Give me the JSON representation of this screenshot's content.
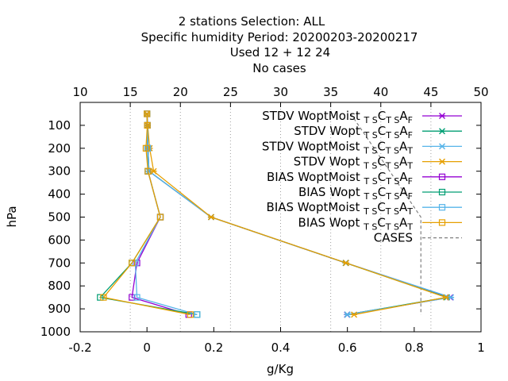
{
  "chart_data": {
    "type": "line",
    "title_lines": [
      "2 stations Selection: ALL",
      "Specific humidity  Period: 20200203-20200217",
      "Used  12 + 12 24",
      "No cases"
    ],
    "xlabel": "g/Kg",
    "ylabel": "hPa",
    "xlim": [
      -0.2,
      1
    ],
    "ylim": [
      1000,
      0
    ],
    "x2lim": [
      10,
      50
    ],
    "xticks": [
      "-0.2",
      "0",
      "0.2",
      "0.4",
      "0.6",
      "0.8",
      "1"
    ],
    "x2ticks": [
      "10",
      "15",
      "20",
      "25",
      "30",
      "35",
      "40",
      "45",
      "50"
    ],
    "yticks": [
      "100",
      "200",
      "300",
      "400",
      "500",
      "600",
      "700",
      "800",
      "900",
      "1000"
    ],
    "grid": "x2 only (dotted)",
    "legend_position": "top-right",
    "levels": [
      50,
      100,
      200,
      300,
      500,
      700,
      850,
      925
    ],
    "series": [
      {
        "name": "STDV WoptMoist",
        "sub1": "T S",
        "mid": "C",
        "sub2": "T S",
        "tail": "A",
        "sub3": "F",
        "color": "#9400d3",
        "marker": "x",
        "values": [
          0.0,
          0.002,
          0.003,
          0.006,
          0.192,
          0.595,
          0.908,
          0.599
        ]
      },
      {
        "name": "STDV Wopt",
        "sub1": "T S",
        "mid": "C",
        "sub2": "T S",
        "tail": "A",
        "sub3": "F",
        "color": "#009e73",
        "marker": "x",
        "values": [
          0.0,
          0.002,
          0.003,
          0.006,
          0.192,
          0.595,
          0.898,
          0.6
        ]
      },
      {
        "name": "STDV WoptMoist",
        "sub1": "T S",
        "mid": "C",
        "sub2": "T S",
        "tail": "A",
        "sub3": "T",
        "color": "#56b4e9",
        "marker": "x",
        "values": [
          0.0,
          0.002,
          0.003,
          0.006,
          0.192,
          0.596,
          0.91,
          0.6
        ]
      },
      {
        "name": "STDV Wopt",
        "sub1": "T S",
        "mid": "C",
        "sub2": "T S",
        "tail": "A",
        "sub3": "T",
        "color": "#e69f00",
        "marker": "x",
        "values": [
          0.0,
          0.002,
          0.008,
          0.02,
          0.192,
          0.596,
          0.895,
          0.62
        ]
      },
      {
        "name": "BIAS WoptMoist",
        "sub1": "T S",
        "mid": "C",
        "sub2": "T S",
        "tail": "A",
        "sub3": "F",
        "color": "#9400d3",
        "marker": "square",
        "values": [
          0.0,
          0.001,
          0.002,
          0.003,
          0.04,
          -0.03,
          -0.045,
          0.125
        ]
      },
      {
        "name": "BIAS Wopt",
        "sub1": "T S",
        "mid": "C",
        "sub2": "T S",
        "tail": "A",
        "sub3": "F",
        "color": "#009e73",
        "marker": "square",
        "values": [
          0.0,
          0.001,
          0.002,
          0.003,
          0.04,
          -0.045,
          -0.14,
          0.15
        ]
      },
      {
        "name": "BIAS WoptMoist",
        "sub1": "T S",
        "mid": "C",
        "sub2": "T S",
        "tail": "A",
        "sub3": "T",
        "color": "#56b4e9",
        "marker": "square",
        "values": [
          0.0,
          0.001,
          0.002,
          0.003,
          0.04,
          -0.035,
          -0.03,
          0.15
        ]
      },
      {
        "name": "BIAS Wopt",
        "sub1": "T S",
        "mid": "C",
        "sub2": "T S",
        "tail": "A",
        "sub3": "T",
        "color": "#e69f00",
        "marker": "square",
        "values": [
          0.0,
          0.001,
          -0.003,
          0.003,
          0.04,
          -0.045,
          -0.13,
          0.13
        ]
      }
    ],
    "cases": {
      "name": "CASES",
      "color": "#808080",
      "dash": true,
      "x2_values": [
        37,
        44,
        44
      ],
      "levels": [
        50,
        500,
        925
      ]
    }
  }
}
